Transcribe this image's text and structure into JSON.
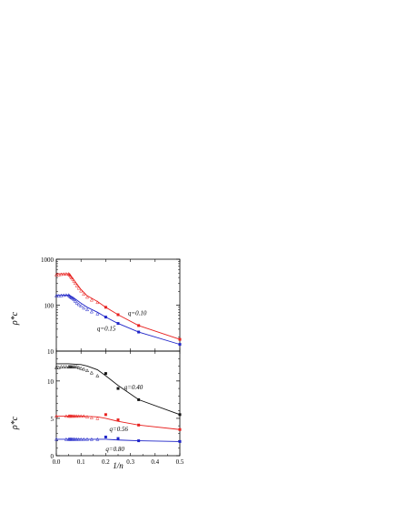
{
  "colors": {
    "red": "#e8201e",
    "blue": "#1e24c8",
    "black": "#111111",
    "gray": "#666666"
  },
  "axis": {
    "xlabel": "1/n",
    "xticks": [
      "0.0",
      "0.1",
      "0.2",
      "0.3",
      "0.4",
      "0.5"
    ],
    "top_ylabel": "ρ*c",
    "top_yticks": [
      "10",
      "100",
      "1000"
    ],
    "bottom_ylabel": "ρ*c",
    "bottom_yticks": [
      "0",
      "5",
      "10"
    ]
  },
  "chart_data": [
    {
      "panel": "top",
      "type": "line",
      "xlabel": "1/n",
      "ylabel": "ρ*c",
      "xlim": [
        0,
        0.5
      ],
      "ylim": [
        10,
        1000
      ],
      "yscale": "log",
      "series": [
        {
          "name": "q=0.10",
          "color": "#e8201e",
          "line": {
            "x": [
              0,
              0.05,
              0.0667,
              0.1,
              0.125,
              0.1667,
              0.2,
              0.25,
              0.3333,
              0.5
            ],
            "y": [
              480,
              480,
              380,
              220,
              160,
              120,
              90,
              62,
              36,
              18
            ]
          },
          "points_open": {
            "x": [
              0,
              0.01,
              0.02,
              0.03,
              0.04,
              0.05,
              0.0526,
              0.0556,
              0.0588,
              0.0625,
              0.0667,
              0.0714,
              0.0769,
              0.0833,
              0.0909,
              0.1,
              0.1111,
              0.125,
              0.1429,
              0.1667
            ],
            "y": [
              460,
              460,
              470,
              475,
              480,
              480,
              465,
              450,
              420,
              395,
              370,
              335,
              300,
              265,
              235,
              205,
              175,
              150,
              130,
              115
            ]
          },
          "points_filled": {
            "x": [
              0.2,
              0.25,
              0.3333,
              0.5
            ],
            "y": [
              90,
              62,
              36,
              18
            ]
          }
        },
        {
          "name": "q=0.15",
          "color": "#1e24c8",
          "line": {
            "x": [
              0,
              0.05,
              0.0667,
              0.1,
              0.125,
              0.1667,
              0.2,
              0.25,
              0.3333,
              0.5
            ],
            "y": [
              165,
              165,
              150,
              110,
              90,
              70,
              55,
              40,
              26,
              14
            ]
          },
          "points_open": {
            "x": [
              0,
              0.01,
              0.02,
              0.03,
              0.04,
              0.05,
              0.0526,
              0.0556,
              0.0588,
              0.0625,
              0.0667,
              0.0714,
              0.0769,
              0.0833,
              0.0909,
              0.1,
              0.1111,
              0.125,
              0.1429,
              0.1667
            ],
            "y": [
              160,
              160,
              162,
              165,
              166,
              166,
              160,
              155,
              150,
              145,
              140,
              132,
              122,
              112,
              104,
              96,
              87,
              80,
              72,
              65
            ]
          },
          "points_filled": {
            "x": [
              0.2,
              0.25,
              0.3333,
              0.5
            ],
            "y": [
              55,
              40,
              26,
              14
            ]
          }
        }
      ],
      "annotations": [
        "q=0.10",
        "q=0.15"
      ]
    },
    {
      "panel": "bottom",
      "type": "line",
      "xlabel": "1/n",
      "ylabel": "ρ*c",
      "xlim": [
        0,
        0.5
      ],
      "ylim": [
        0,
        14
      ],
      "series": [
        {
          "name": "q=0.40",
          "color": "#111111",
          "line": {
            "x": [
              0,
              0.05,
              0.1,
              0.125,
              0.1667,
              0.2,
              0.25,
              0.3333,
              0.5
            ],
            "y": [
              12.3,
              12.3,
              12.2,
              12.0,
              11.5,
              10.7,
              9.4,
              7.5,
              5.5
            ]
          },
          "points_open": {
            "x": [
              0,
              0.01,
              0.02,
              0.03,
              0.04,
              0.05,
              0.0526,
              0.0556,
              0.0588,
              0.0625,
              0.0667,
              0.0714,
              0.0769,
              0.0833,
              0.0909,
              0.1,
              0.1111,
              0.125,
              0.1429,
              0.1667
            ],
            "y": [
              11.8,
              11.8,
              11.9,
              11.9,
              11.9,
              11.9,
              11.9,
              11.9,
              11.9,
              11.9,
              11.9,
              11.9,
              11.9,
              11.9,
              11.8,
              11.7,
              11.6,
              11.4,
              11.1,
              10.7
            ]
          },
          "points_filled": {
            "x": [
              0.2,
              0.25,
              0.3333,
              0.5
            ],
            "y": [
              11.0,
              9.0,
              7.5,
              5.5
            ]
          }
        },
        {
          "name": "q=0.56",
          "color": "#e8201e",
          "line": {
            "x": [
              0,
              0.05,
              0.1,
              0.1667,
              0.2,
              0.25,
              0.3333,
              0.5
            ],
            "y": [
              5.3,
              5.3,
              5.3,
              5.2,
              5.0,
              4.6,
              4.1,
              3.5
            ]
          },
          "points_open": {
            "x": [
              0,
              0.04,
              0.05,
              0.0526,
              0.0556,
              0.0588,
              0.0625,
              0.0667,
              0.0714,
              0.0769,
              0.0833,
              0.0909,
              0.1,
              0.1111,
              0.125,
              0.1429,
              0.1667
            ],
            "y": [
              5.3,
              5.3,
              5.3,
              5.3,
              5.3,
              5.3,
              5.3,
              5.3,
              5.3,
              5.3,
              5.3,
              5.3,
              5.3,
              5.3,
              5.2,
              5.1,
              5.0
            ]
          },
          "points_filled": {
            "x": [
              0.2,
              0.25,
              0.3333,
              0.5
            ],
            "y": [
              5.5,
              4.8,
              4.1,
              3.5
            ]
          }
        },
        {
          "name": "q=0.80",
          "color": "#1e24c8",
          "line": {
            "x": [
              0,
              0.05,
              0.1,
              0.2,
              0.25,
              0.3333,
              0.5
            ],
            "y": [
              2.2,
              2.2,
              2.2,
              2.2,
              2.1,
              2.0,
              1.9
            ]
          },
          "points_open": {
            "x": [
              0,
              0.04,
              0.05,
              0.0526,
              0.0556,
              0.0588,
              0.0625,
              0.0667,
              0.0714,
              0.0769,
              0.0833,
              0.0909,
              0.1,
              0.1111,
              0.125,
              0.1429,
              0.1667
            ],
            "y": [
              2.2,
              2.2,
              2.2,
              2.2,
              2.2,
              2.2,
              2.2,
              2.2,
              2.2,
              2.2,
              2.2,
              2.2,
              2.2,
              2.2,
              2.2,
              2.2,
              2.2
            ]
          },
          "points_filled": {
            "x": [
              0.2,
              0.25,
              0.3333,
              0.5
            ],
            "y": [
              2.5,
              2.3,
              2.0,
              1.9
            ]
          }
        }
      ],
      "annotations": [
        "q=0.40",
        "q=0.56",
        "q=0.80"
      ]
    }
  ]
}
